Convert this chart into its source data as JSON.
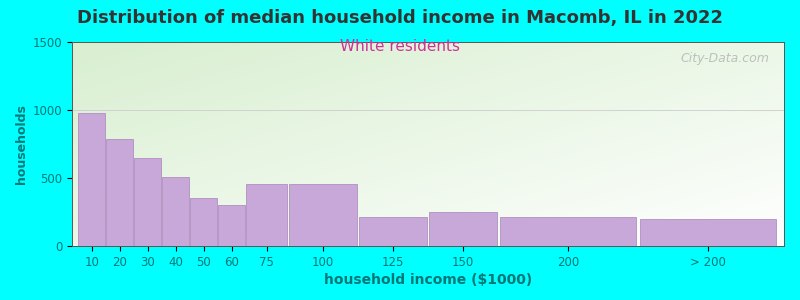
{
  "title": "Distribution of median household income in Macomb, IL in 2022",
  "subtitle": "White residents",
  "xlabel": "household income ($1000)",
  "ylabel": "households",
  "background_outer": "#00FFFF",
  "background_inner_topleft": "#d8efd0",
  "background_inner_bottomright": "#ffffff",
  "bar_color": "#c8a8d8",
  "bar_edge_color": "#b090c0",
  "title_fontsize": 13,
  "subtitle_fontsize": 11,
  "subtitle_color": "#cc3399",
  "ylabel_color": "#007777",
  "xlabel_color": "#007777",
  "tick_label_color": "#007777",
  "watermark": "City-Data.com",
  "categories": [
    "10",
    "20",
    "30",
    "40",
    "50",
    "60",
    "75",
    "100",
    "125",
    "150",
    "200",
    "> 200"
  ],
  "values": [
    975,
    785,
    645,
    510,
    350,
    305,
    455,
    455,
    215,
    250,
    215,
    195
  ],
  "bar_widths": [
    1,
    1,
    1,
    1,
    1,
    1,
    1.5,
    2.5,
    2.5,
    2.5,
    5,
    5
  ],
  "bar_lefts": [
    0,
    1,
    2,
    3,
    4,
    5,
    6,
    7.5,
    10,
    12.5,
    15,
    20
  ],
  "xlim": [
    -0.2,
    25.2
  ],
  "ylim": [
    0,
    1500
  ],
  "yticks": [
    0,
    500,
    1000,
    1500
  ]
}
